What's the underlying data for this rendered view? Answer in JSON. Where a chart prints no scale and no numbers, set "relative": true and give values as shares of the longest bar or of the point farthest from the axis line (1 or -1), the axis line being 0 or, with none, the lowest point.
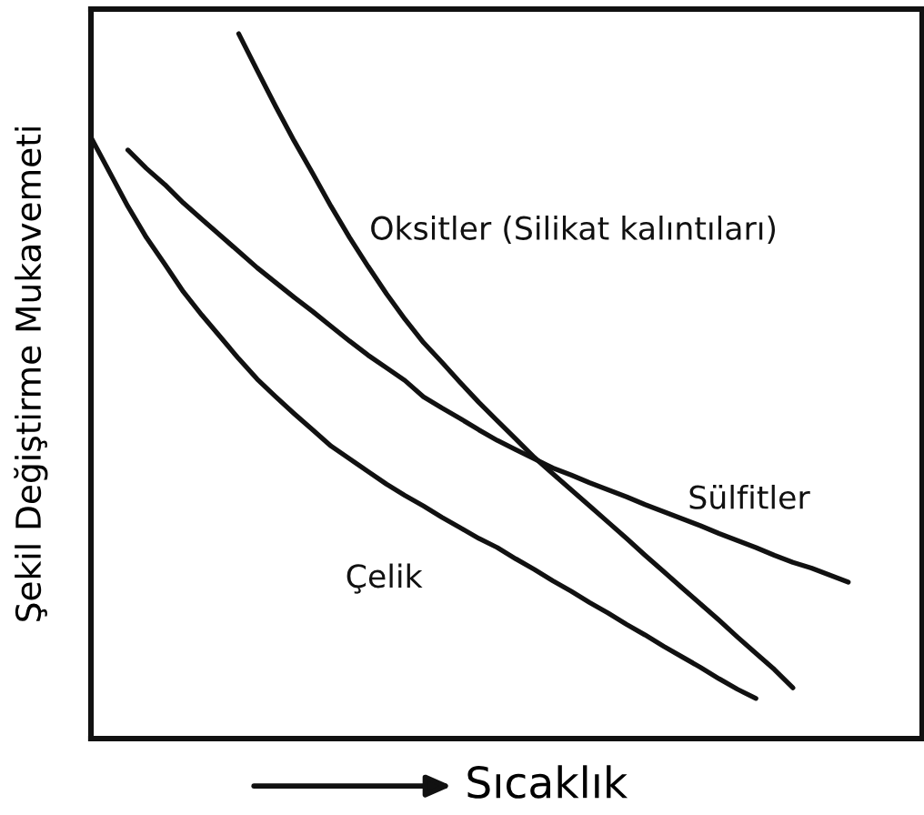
{
  "chart_data": {
    "type": "line",
    "relative": true,
    "xlabel": "Sıcaklık",
    "ylabel": "Şekil Değiştirme Mukavemeti",
    "line_style": "solid",
    "categories": [
      null,
      null,
      null,
      null,
      null,
      null,
      null,
      null,
      null,
      null,
      null,
      null,
      null,
      null,
      null,
      null,
      null,
      null,
      null,
      null,
      null,
      null,
      null,
      null,
      null,
      null,
      null,
      null,
      null,
      null,
      null,
      null,
      null,
      null,
      null,
      null,
      null,
      null,
      null,
      null,
      null,
      null,
      null,
      null,
      null,
      null
    ],
    "series": [
      {
        "name": "Çelik",
        "color": "#111111",
        "values": [
          0.853,
          0.804,
          0.755,
          0.711,
          0.673,
          0.634,
          0.601,
          0.57,
          0.539,
          0.51,
          0.485,
          0.461,
          0.438,
          0.415,
          0.397,
          0.379,
          0.361,
          0.345,
          0.33,
          0.314,
          0.299,
          0.284,
          0.271,
          0.255,
          0.24,
          0.224,
          0.209,
          0.193,
          0.178,
          0.162,
          0.147,
          0.131,
          0.116,
          0.101,
          0.085,
          0.07,
          0.057,
          null,
          null,
          null,
          null,
          null,
          null,
          null,
          null,
          null
        ]
      },
      {
        "name": "Sülfitler",
        "color": "#111111",
        "values": [
          null,
          null,
          0.835,
          0.809,
          0.786,
          0.76,
          0.737,
          0.714,
          0.691,
          0.668,
          0.647,
          0.626,
          0.606,
          0.585,
          0.564,
          0.544,
          0.526,
          0.508,
          0.485,
          0.469,
          0.454,
          0.438,
          0.423,
          0.41,
          0.397,
          0.384,
          0.374,
          0.363,
          0.353,
          0.343,
          0.332,
          0.322,
          0.312,
          0.302,
          0.291,
          0.281,
          0.271,
          0.26,
          0.25,
          0.242,
          0.232,
          0.222,
          null,
          null,
          null,
          null
        ]
      },
      {
        "name": "Oksitler (Silikat kalıntıları)",
        "color": "#111111",
        "values": [
          null,
          null,
          null,
          null,
          null,
          null,
          null,
          null,
          1.0,
          0.948,
          0.897,
          0.848,
          0.802,
          0.755,
          0.711,
          0.67,
          0.631,
          0.595,
          0.562,
          0.534,
          0.505,
          0.477,
          0.451,
          0.425,
          0.399,
          0.376,
          0.353,
          0.33,
          0.307,
          0.284,
          0.26,
          0.237,
          0.214,
          0.191,
          0.168,
          0.144,
          0.121,
          0.098,
          0.072,
          null,
          null,
          null,
          null,
          null,
          null,
          null
        ]
      }
    ]
  }
}
